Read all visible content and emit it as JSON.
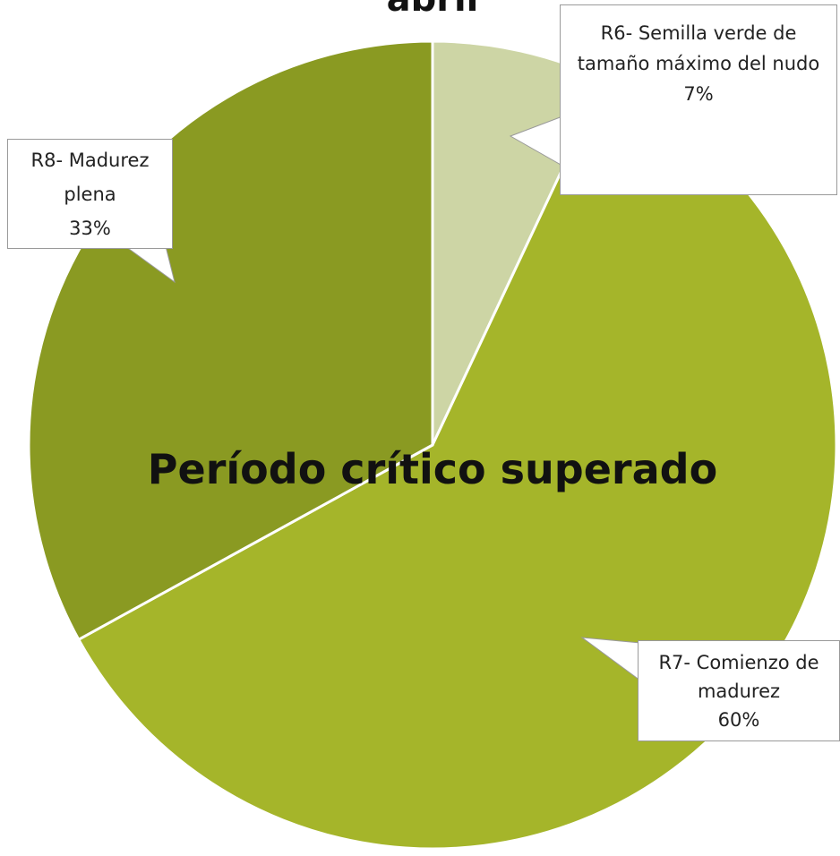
{
  "chart_data": {
    "type": "pie",
    "title": "abril",
    "annotation": "Período crítico superado",
    "categories": [
      "R6- Semilla verde de tamaño máximo del nudo",
      "R7- Comienzo de madurez",
      "R8- Madurez plena"
    ],
    "values": [
      7,
      60,
      33
    ],
    "value_labels": [
      "7%",
      "60%",
      "33%"
    ],
    "colors": [
      "#cdd5a5",
      "#a5b52a",
      "#8a9a22"
    ]
  }
}
